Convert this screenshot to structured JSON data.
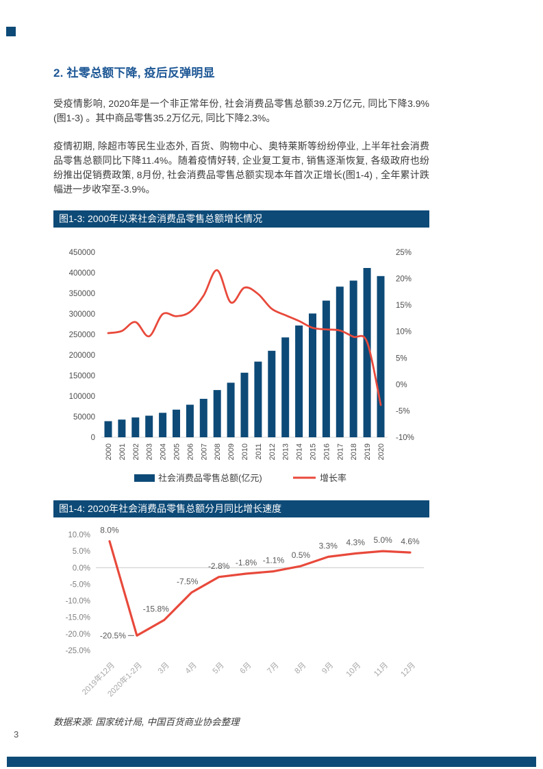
{
  "page": {
    "number": "3",
    "heading": "2. 社零总额下降, 疫后反弹明显",
    "paragraphs": [
      "受疫情影响, 2020年是一个非正常年份, 社会消费品零售总额39.2万亿元, 同比下降3.9% (图1-3) 。其中商品零售35.2万亿元, 同比下降2.3%。",
      "疫情初期, 除超市等民生业态外, 百货、购物中心、奥特莱斯等纷纷停业, 上半年社会消费品零售总额同比下降11.4%。随着疫情好转, 企业复工复市, 销售逐渐恢复, 各级政府也纷纷推出促销费政策, 8月份, 社会消费品零售总额实现本年首次正增长(图1-4) , 全年累计跌幅进一步收窄至-3.9%。"
    ],
    "source_note": "数据来源: 国家统计局, 中国百货商业协会整理"
  },
  "colors": {
    "navy": "#0d4a77",
    "heading_blue": "#1d5795",
    "body_text": "#3a3a3a",
    "red_line": "#e8493b",
    "axis_text": "#4d4d4d",
    "axis_text_mid": "#7f7f7f",
    "axis_text_light": "#a8a8a8",
    "data_label": "#595959",
    "baseline_gray": "#d6d6d6",
    "zeroline_gray": "#c8c8c8"
  },
  "chart_data": [
    {
      "id": "fig1_3",
      "type": "bar+line",
      "title": "图1-3: 2000年以来社会消费品零售总额增长情况",
      "categories": [
        "2000",
        "2001",
        "2002",
        "2003",
        "2004",
        "2005",
        "2006",
        "2007",
        "2008",
        "2009",
        "2010",
        "2011",
        "2012",
        "2013",
        "2014",
        "2015",
        "2016",
        "2017",
        "2018",
        "2019",
        "2020"
      ],
      "series": [
        {
          "name": "社会消费品零售总额(亿元)",
          "type": "bar",
          "values": [
            39106,
            43055,
            48136,
            52516,
            59501,
            67177,
            79145,
            93572,
            114830,
            132678,
            156998,
            183919,
            210307,
            242843,
            271896,
            300931,
            332316,
            366262,
            380987,
            411649,
            391981
          ]
        },
        {
          "name": "增长率",
          "type": "line",
          "values": [
            9.7,
            10.1,
            11.8,
            9.1,
            13.3,
            12.9,
            13.7,
            16.8,
            21.6,
            15.5,
            18.3,
            17.1,
            14.3,
            13.1,
            12.0,
            10.7,
            10.4,
            10.2,
            9.0,
            8.0,
            -3.9
          ]
        }
      ],
      "left_axis": {
        "min": 0,
        "max": 450000,
        "step": 50000,
        "labels": [
          "0",
          "50000",
          "100000",
          "150000",
          "200000",
          "250000",
          "300000",
          "350000",
          "400000",
          "450000"
        ]
      },
      "right_axis": {
        "min": -10,
        "max": 25,
        "step": 5,
        "labels": [
          "-10%",
          "-5%",
          "0%",
          "5%",
          "10%",
          "15%",
          "20%",
          "25%"
        ]
      },
      "legend_position": "bottom",
      "grid": false
    },
    {
      "id": "fig1_4",
      "type": "line",
      "title": "图1-4: 2020年社会消费品零售总额分月同比增长速度",
      "categories": [
        "2019年12月",
        "2020年1-2月",
        "3月",
        "4月",
        "5月",
        "6月",
        "7月",
        "8月",
        "9月",
        "10月",
        "11月",
        "12月"
      ],
      "values": [
        8.0,
        -20.5,
        -15.8,
        -7.5,
        -2.8,
        -1.8,
        -1.1,
        0.5,
        3.3,
        4.3,
        5.0,
        4.6
      ],
      "point_labels": [
        "8.0%",
        "-20.5%",
        "-15.8%",
        "-7.5%",
        "-2.8%",
        "-1.8%",
        "-1.1%",
        "0.5%",
        "3.3%",
        "4.3%",
        "5.0%",
        "4.6%"
      ],
      "y_axis": {
        "min": -25,
        "max": 10,
        "step": 5,
        "labels": [
          "10.0%",
          "5.0%",
          "0.0%",
          "-5.0%",
          "-10.0%",
          "-15.0%",
          "-20.0%",
          "-25.0%"
        ]
      },
      "grid": "zero-line-only",
      "legend_position": "none"
    }
  ]
}
